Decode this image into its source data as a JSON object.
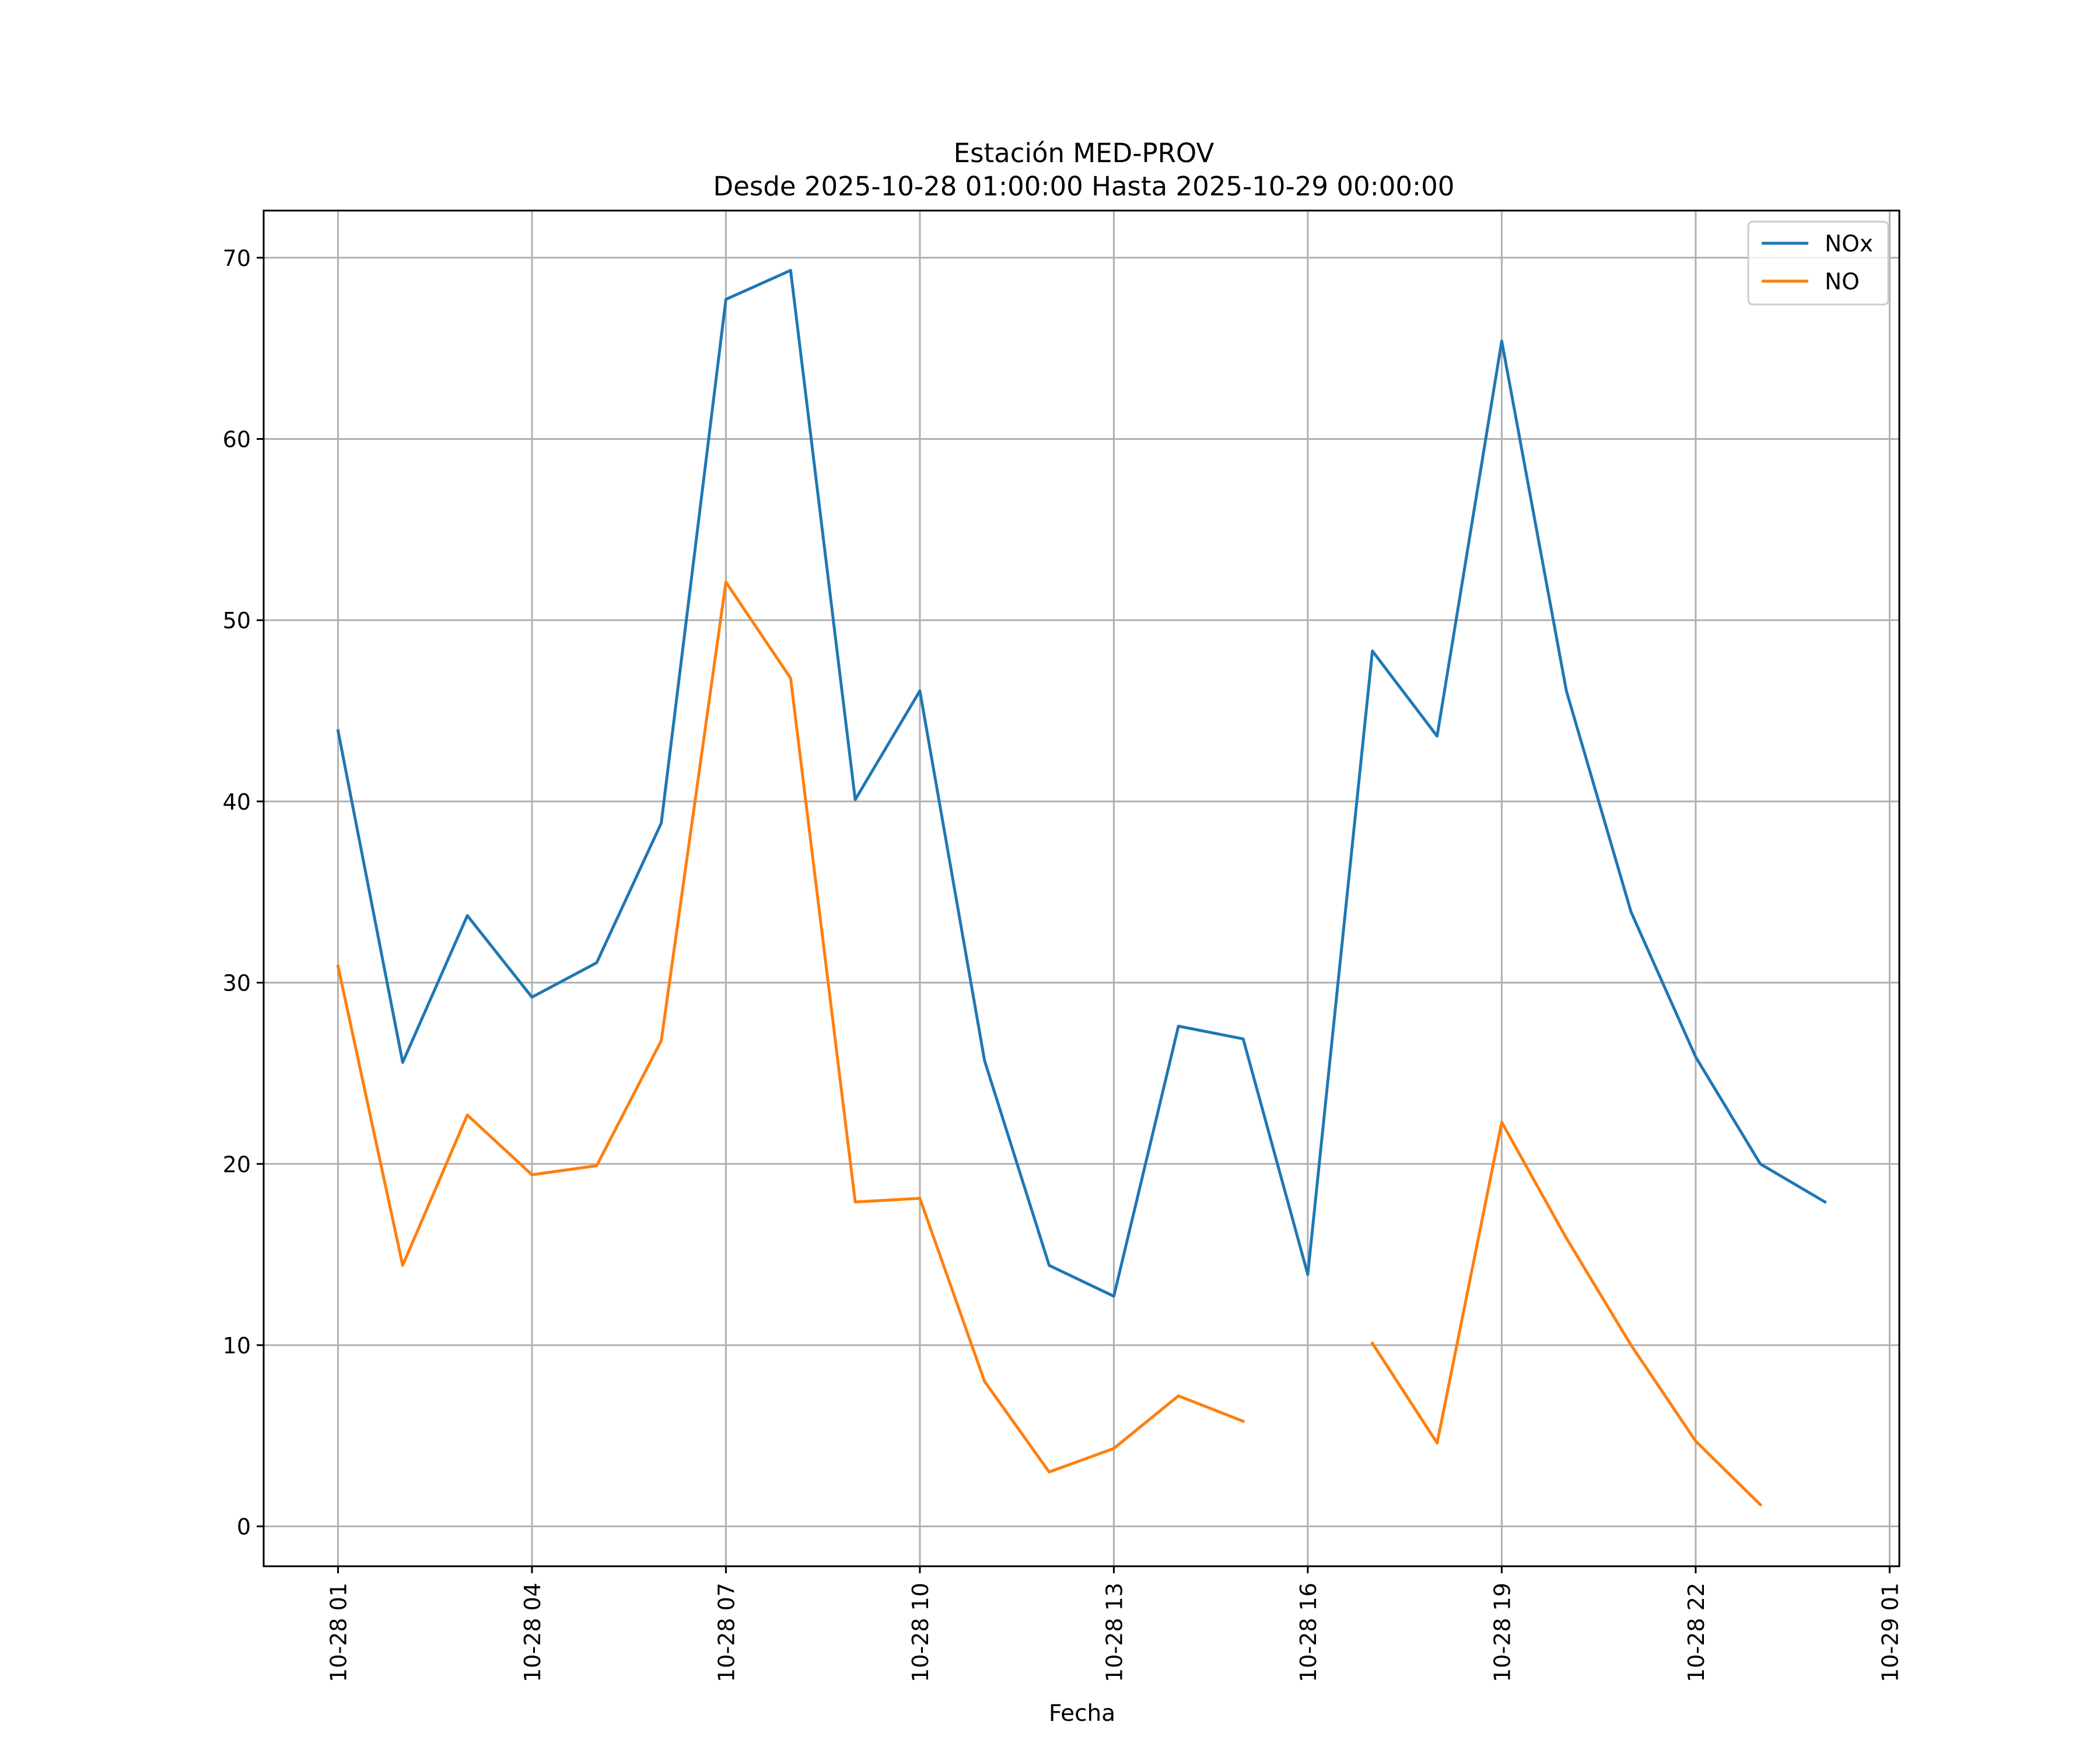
{
  "chart_data": {
    "type": "line",
    "title": "Estación MED-PROV",
    "subtitle": "Desde 2025-10-28 01:00:00 Hasta 2025-10-29 00:00:00",
    "xlabel": "Fecha",
    "ylabel": "",
    "grid": true,
    "legend_position": "top-right",
    "x": [
      "10-28 01",
      "10-28 02",
      "10-28 03",
      "10-28 04",
      "10-28 05",
      "10-28 06",
      "10-28 07",
      "10-28 08",
      "10-28 09",
      "10-28 10",
      "10-28 11",
      "10-28 12",
      "10-28 13",
      "10-28 14",
      "10-28 15",
      "10-28 16",
      "10-28 17",
      "10-28 18",
      "10-28 19",
      "10-28 20",
      "10-28 21",
      "10-28 22",
      "10-28 23",
      "10-29 00"
    ],
    "xlim_hours": [
      -1.15,
      24.15
    ],
    "ylim": [
      -2.2,
      72.6
    ],
    "x_ticks": [
      {
        "label": "10-28 01",
        "hour": 0
      },
      {
        "label": "10-28 04",
        "hour": 3
      },
      {
        "label": "10-28 07",
        "hour": 6
      },
      {
        "label": "10-28 10",
        "hour": 9
      },
      {
        "label": "10-28 13",
        "hour": 12
      },
      {
        "label": "10-28 16",
        "hour": 15
      },
      {
        "label": "10-28 19",
        "hour": 18
      },
      {
        "label": "10-28 22",
        "hour": 21
      },
      {
        "label": "10-29 01",
        "hour": 24
      }
    ],
    "y_ticks": [
      0,
      10,
      20,
      30,
      40,
      50,
      60,
      70
    ],
    "series": [
      {
        "name": "NOx",
        "color": "#1f77b4",
        "values": [
          43.9,
          25.6,
          33.7,
          29.2,
          31.1,
          38.8,
          67.7,
          69.3,
          40.1,
          46.1,
          25.7,
          14.4,
          12.7,
          27.6,
          26.9,
          13.9,
          48.3,
          43.6,
          65.4,
          46.1,
          33.9,
          25.9,
          20.0,
          17.9
        ]
      },
      {
        "name": "NO",
        "color": "#ff7f0e",
        "values": [
          30.9,
          14.4,
          22.7,
          19.4,
          19.9,
          26.8,
          52.1,
          46.8,
          17.9,
          18.1,
          8.0,
          3.0,
          4.3,
          7.2,
          5.8,
          null,
          10.1,
          4.6,
          22.3,
          15.9,
          10.0,
          4.7,
          1.2,
          null
        ]
      }
    ]
  }
}
